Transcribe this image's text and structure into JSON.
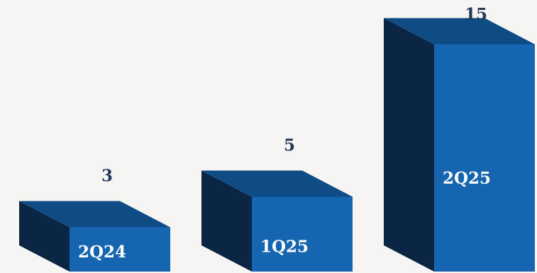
{
  "chart_data": {
    "type": "bar",
    "categories": [
      "2Q24",
      "1Q25",
      "2Q25"
    ],
    "values": [
      3,
      5,
      15
    ],
    "value_labels": [
      "3",
      "5",
      "15"
    ],
    "title": "",
    "xlabel": "",
    "ylabel": "",
    "ylim": [
      0,
      15
    ],
    "grid": false,
    "legend": "none",
    "colors": {
      "front": "#1565b0",
      "top": "#0f4c86",
      "side": "#0a2644",
      "value_text": "#243a59",
      "category_text": "#ffffff",
      "background": "#f7f5f4"
    }
  }
}
